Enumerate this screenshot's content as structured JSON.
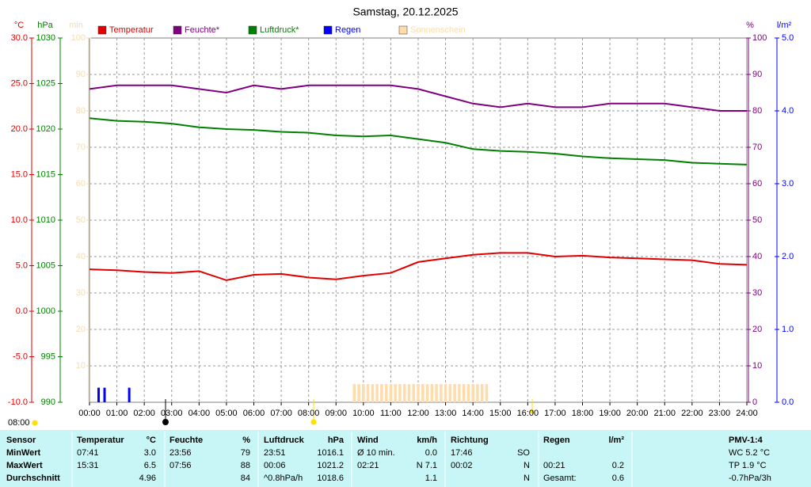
{
  "chart_data": {
    "type": "line",
    "title": "Samstag, 20.12.2025",
    "grid": true,
    "x": [
      "00:00",
      "01:00",
      "02:00",
      "03:00",
      "04:00",
      "05:00",
      "06:00",
      "07:00",
      "08:00",
      "09:00",
      "10:00",
      "11:00",
      "12:00",
      "13:00",
      "14:00",
      "15:00",
      "16:00",
      "17:00",
      "18:00",
      "19:00",
      "20:00",
      "21:00",
      "22:00",
      "23:00",
      "24:00"
    ],
    "xticks": [
      "00:00",
      "01:00",
      "02:00",
      "03:00",
      "04:00",
      "05:00",
      "06:00",
      "07:00",
      "08:00",
      "09:00",
      "10:00",
      "11:00",
      "12:00",
      "13:00",
      "14:00",
      "15:00",
      "16:00",
      "17:00",
      "18:00",
      "19:00",
      "20:00",
      "21:00",
      "22:00",
      "23:00",
      "24:00"
    ],
    "marker_label": "08:00",
    "axes": [
      {
        "label": "°C",
        "color": "#e00000",
        "side": "left",
        "lim": [
          -10,
          30
        ],
        "ticks": [
          {
            "value": 30,
            "label": "30.0"
          },
          {
            "value": 25,
            "label": "25.0"
          },
          {
            "value": 20,
            "label": "20.0"
          },
          {
            "value": 15,
            "label": "15.0"
          },
          {
            "value": 10,
            "label": "10.0"
          },
          {
            "value": 5,
            "label": "5.0"
          },
          {
            "value": 0,
            "label": "0.0"
          },
          {
            "value": -5,
            "label": "-5.0"
          },
          {
            "value": -10,
            "label": "-10.0"
          }
        ]
      },
      {
        "label": "hPa",
        "color": "#008000",
        "side": "left",
        "lim": [
          990,
          1030
        ],
        "ticks": [
          1030,
          1025,
          1020,
          1015,
          1010,
          1005,
          1000,
          995,
          990
        ]
      },
      {
        "label": "min",
        "color": "#f2dcb4",
        "side": "left",
        "lim": [
          0,
          100
        ],
        "ticks": [
          100,
          90,
          80,
          70,
          60,
          50,
          40,
          30,
          20,
          10
        ]
      },
      {
        "label": "%",
        "color": "#800080",
        "side": "right",
        "lim": [
          0,
          100
        ],
        "ticks": [
          100,
          90,
          80,
          70,
          60,
          50,
          40,
          30,
          20,
          10,
          0
        ]
      },
      {
        "label": "l/m²",
        "color": "#0000ff",
        "side": "right",
        "lim": [
          0,
          5
        ],
        "ticks": [
          {
            "value": 5,
            "label": "5.0"
          },
          {
            "value": 4,
            "label": "4.0"
          },
          {
            "value": 3,
            "label": "3.0"
          },
          {
            "value": 2,
            "label": "2.0"
          },
          {
            "value": 1,
            "label": "1.0"
          },
          {
            "value": 0,
            "label": "0.0"
          }
        ]
      }
    ],
    "series": [
      {
        "name": "Temperatur",
        "color": "#e00000",
        "type": "line",
        "axis": 0,
        "values": [
          4.6,
          4.5,
          4.3,
          4.2,
          4.4,
          3.4,
          4.0,
          4.1,
          3.7,
          3.5,
          3.9,
          4.2,
          5.4,
          5.8,
          6.2,
          6.4,
          6.4,
          6.0,
          6.1,
          5.9,
          5.8,
          5.7,
          5.6,
          5.2,
          5.1
        ]
      },
      {
        "name": "Feuchte*",
        "color": "#800080",
        "type": "line",
        "axis": 3,
        "values": [
          86,
          87,
          87,
          87,
          86,
          85,
          87,
          86,
          87,
          87,
          87,
          87,
          86,
          84,
          82,
          81,
          82,
          81,
          81,
          82,
          82,
          82,
          81,
          80,
          80
        ]
      },
      {
        "name": "Luftdruck*",
        "color": "#008000",
        "type": "line",
        "axis": 1,
        "values": [
          1021.2,
          1020.9,
          1020.8,
          1020.6,
          1020.2,
          1020.0,
          1019.9,
          1019.7,
          1019.6,
          1019.3,
          1019.2,
          1019.3,
          1018.9,
          1018.5,
          1017.8,
          1017.6,
          1017.5,
          1017.3,
          1017.0,
          1016.8,
          1016.7,
          1016.6,
          1016.3,
          1016.2,
          1016.1
        ]
      },
      {
        "name": "Regen",
        "color": "#0000ff",
        "type": "bar",
        "axis": 4,
        "x": [
          "00:20",
          "00:33",
          "01:27"
        ],
        "values": [
          0.2,
          0.2,
          0.2
        ]
      },
      {
        "name": "Sonnenschein",
        "color": "#ffdcaa",
        "type": "bar",
        "axis": 2,
        "x": [
          "09:40",
          "09:50",
          "10:00",
          "10:10",
          "10:20",
          "10:30",
          "10:40",
          "10:50",
          "11:00",
          "11:10",
          "11:20",
          "11:30",
          "11:40",
          "11:50",
          "12:00",
          "12:10",
          "12:20",
          "12:30",
          "12:40",
          "12:50",
          "13:00",
          "13:10",
          "13:20",
          "13:30",
          "13:40",
          "13:50",
          "14:00",
          "14:10",
          "14:20",
          "14:30"
        ],
        "values": [
          5,
          5,
          5,
          5,
          5,
          5,
          5,
          5,
          5,
          5,
          5,
          5,
          5,
          5,
          5,
          5,
          5,
          5,
          5,
          5,
          5,
          5,
          5,
          5,
          5,
          5,
          5,
          5,
          5,
          5
        ]
      }
    ]
  },
  "table": {
    "header": {
      "label": "Sensor",
      "t_time": "Temperatur",
      "t_val": "°C",
      "h_time": "Feuchte",
      "h_val": "%",
      "p_time": "Luftdruck",
      "p_val": "hPa",
      "w_time": "Wind",
      "w_val": "km/h",
      "d_time": "Richtung",
      "r_time": "Regen",
      "r_val": "l/m²",
      "pmv": "PMV-1:4"
    },
    "rows": [
      {
        "label": "MinWert",
        "t_time": "07:41",
        "t_val": "3.0",
        "h_time": "23:56",
        "h_val": "79",
        "p_time": "23:51",
        "p_val": "1016.1",
        "w_time": "Ø 10 min.",
        "w_val": "0.0",
        "d_time": "17:46",
        "d_val": "SO",
        "pmv": "WC 5.2 °C"
      },
      {
        "label": "MaxWert",
        "t_time": "15:31",
        "t_val": "6.5",
        "h_time": "07:56",
        "h_val": "88",
        "p_time": "00:06",
        "p_val": "1021.2",
        "w_time": "02:21",
        "w_val": "N 7.1",
        "d_time": "00:02",
        "d_val": "N",
        "r_time": "00:21",
        "r_val": "0.2",
        "pmv": "TP 1.9 °C"
      },
      {
        "label": "Durchschnitt",
        "t_val": "4.96",
        "h_val": "84",
        "p_time": "^0.8hPa/h",
        "p_val": "1018.6",
        "w_val": "1.1",
        "d_val": "N",
        "r_time": "Gesamt:",
        "r_val": "0.6",
        "pmv": "-0.7hPa/3h"
      }
    ]
  }
}
